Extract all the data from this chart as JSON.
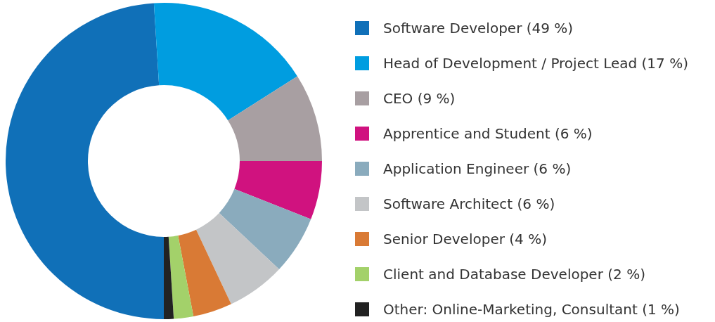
{
  "chart_data": {
    "type": "donut",
    "categories": [
      "Software Developer (49 %)",
      "Head of Development / Project Lead (17 %)",
      "CEO (9 %)",
      "Apprentice and Student (6 %)",
      "Application Engineer (6 %)",
      "Software Architect (6 %)",
      "Senior Developer (4 %)",
      "Client and Database Developer (2 %)",
      "Other: Online-Marketing, Consultant (1 %)"
    ],
    "values": [
      49,
      17,
      9,
      6,
      6,
      6,
      4,
      2,
      1
    ],
    "colors": [
      "#1070b8",
      "#009de0",
      "#a89fa2",
      "#d0127f",
      "#8aabbd",
      "#c3c5c7",
      "#d97a35",
      "#a3d16a",
      "#222222"
    ],
    "legend": "right"
  }
}
